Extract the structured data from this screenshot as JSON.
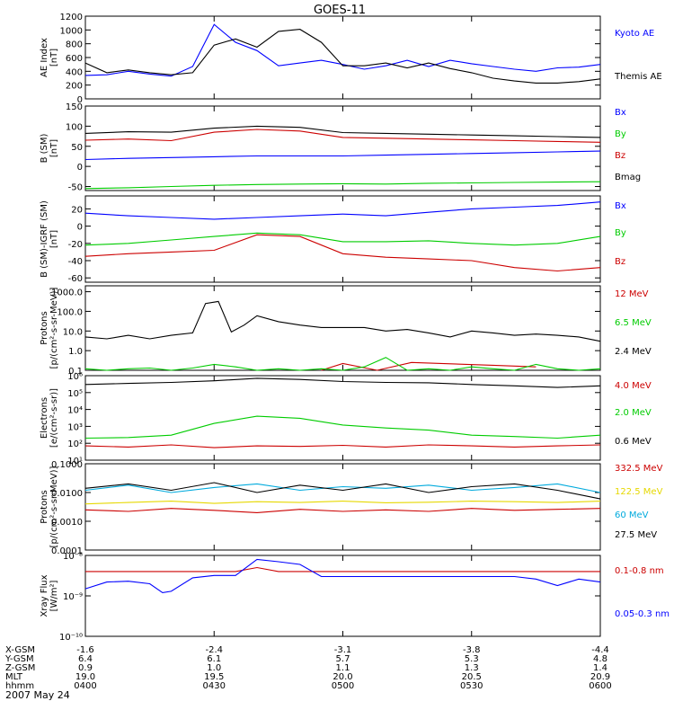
{
  "title": "GOES-11",
  "chart_data": [
    {
      "type": "line",
      "ylabel": [
        "AE Index",
        "[nT]"
      ],
      "yscale": "linear",
      "ylim": [
        0,
        1200
      ],
      "yticks": [
        0,
        200,
        400,
        600,
        800,
        1000,
        1200
      ],
      "ytick_labels": [
        "0",
        "200",
        "400",
        "600",
        "800",
        "1000",
        "1200"
      ],
      "series": [
        {
          "name": "Kyoto AE",
          "color": "#0000ff",
          "x": [
            0,
            5,
            10,
            15,
            20,
            25,
            30,
            35,
            40,
            45,
            50,
            55,
            60,
            65,
            70,
            75,
            80,
            85,
            90,
            95,
            100,
            105,
            110,
            115,
            120
          ],
          "values": [
            340,
            350,
            400,
            360,
            330,
            470,
            1080,
            820,
            700,
            480,
            520,
            560,
            500,
            430,
            480,
            560,
            470,
            560,
            510,
            470,
            430,
            400,
            450,
            460,
            500
          ]
        },
        {
          "name": "Themis AE",
          "color": "#000000",
          "x": [
            0,
            5,
            10,
            15,
            20,
            25,
            30,
            35,
            40,
            45,
            50,
            55,
            60,
            65,
            70,
            75,
            80,
            85,
            90,
            95,
            100,
            105,
            110,
            115,
            120
          ],
          "values": [
            520,
            380,
            420,
            380,
            350,
            380,
            780,
            870,
            750,
            980,
            1010,
            820,
            480,
            480,
            520,
            450,
            520,
            440,
            380,
            300,
            260,
            230,
            230,
            250,
            290
          ]
        }
      ]
    },
    {
      "type": "line",
      "ylabel": [
        "B (SM)",
        "[nT]"
      ],
      "yscale": "linear",
      "ylim": [
        -60,
        150
      ],
      "yticks": [
        -50,
        0,
        50,
        100,
        150
      ],
      "ytick_labels": [
        "-50",
        "0",
        "50",
        "100",
        "150"
      ],
      "series": [
        {
          "name": "Bx",
          "color": "#0000ff",
          "x": [
            0,
            10,
            20,
            30,
            40,
            50,
            60,
            70,
            80,
            90,
            100,
            110,
            120
          ],
          "values": [
            17,
            20,
            22,
            24,
            26,
            26,
            26,
            28,
            30,
            32,
            34,
            36,
            38
          ]
        },
        {
          "name": "By",
          "color": "#00cc00",
          "x": [
            0,
            10,
            20,
            30,
            40,
            50,
            60,
            70,
            80,
            90,
            100,
            110,
            120
          ],
          "values": [
            -55,
            -53,
            -50,
            -47,
            -45,
            -44,
            -43,
            -44,
            -42,
            -41,
            -40,
            -39,
            -38
          ]
        },
        {
          "name": "Bz",
          "color": "#cc0000",
          "x": [
            0,
            10,
            20,
            30,
            40,
            50,
            60,
            70,
            80,
            90,
            100,
            110,
            120
          ],
          "values": [
            65,
            68,
            64,
            85,
            92,
            88,
            72,
            70,
            68,
            66,
            64,
            62,
            60
          ]
        },
        {
          "name": "Bmag",
          "color": "#000000",
          "x": [
            0,
            10,
            20,
            30,
            40,
            50,
            60,
            70,
            80,
            90,
            100,
            110,
            120
          ],
          "values": [
            82,
            86,
            85,
            95,
            100,
            97,
            84,
            82,
            80,
            78,
            76,
            74,
            72
          ]
        }
      ]
    },
    {
      "type": "line",
      "ylabel": [
        "B (SM)-IGRF (SM)",
        "[nT]"
      ],
      "yscale": "linear",
      "ylim": [
        -65,
        35
      ],
      "yticks": [
        -60,
        -40,
        -20,
        0,
        20
      ],
      "ytick_labels": [
        "-60",
        "-40",
        "-20",
        "0",
        "20"
      ],
      "series": [
        {
          "name": "Bx",
          "color": "#0000ff",
          "x": [
            0,
            10,
            20,
            30,
            40,
            50,
            60,
            70,
            80,
            90,
            100,
            110,
            120
          ],
          "values": [
            15,
            12,
            10,
            8,
            10,
            12,
            14,
            12,
            16,
            20,
            22,
            24,
            28
          ]
        },
        {
          "name": "By",
          "color": "#00cc00",
          "x": [
            0,
            10,
            20,
            30,
            40,
            50,
            60,
            70,
            80,
            90,
            100,
            110,
            120
          ],
          "values": [
            -22,
            -20,
            -16,
            -12,
            -8,
            -10,
            -18,
            -18,
            -17,
            -20,
            -22,
            -20,
            -12
          ]
        },
        {
          "name": "Bz",
          "color": "#cc0000",
          "x": [
            0,
            10,
            20,
            30,
            40,
            50,
            60,
            70,
            80,
            90,
            100,
            110,
            120
          ],
          "values": [
            -35,
            -32,
            -30,
            -28,
            -10,
            -12,
            -32,
            -36,
            -38,
            -40,
            -48,
            -52,
            -48
          ]
        }
      ]
    },
    {
      "type": "line",
      "ylabel": [
        "Protons",
        "[p/(cm²-s-sr-MeV)]"
      ],
      "yscale": "log",
      "ylim": [
        0.1,
        2000
      ],
      "yticks": [
        0.1,
        1,
        10,
        100,
        1000
      ],
      "ytick_labels": [
        "0.1",
        "1.0",
        "10.0",
        "100.0",
        "1000.0"
      ],
      "series": [
        {
          "name": "12 MeV",
          "color": "#cc0000",
          "x": [
            55,
            60,
            68,
            76,
            95,
            105
          ],
          "values": [
            0.1,
            0.22,
            0.1,
            0.25,
            0.18,
            0.15
          ]
        },
        {
          "name": "6.5 MeV",
          "color": "#00cc00",
          "x": [
            0,
            5,
            10,
            15,
            20,
            25,
            30,
            35,
            40,
            45,
            50,
            55,
            60,
            65,
            70,
            75,
            80,
            85,
            90,
            95,
            100,
            105,
            110,
            115,
            120
          ],
          "values": [
            0.12,
            0.1,
            0.12,
            0.13,
            0.1,
            0.13,
            0.2,
            0.15,
            0.1,
            0.12,
            0.1,
            0.12,
            0.1,
            0.15,
            0.45,
            0.1,
            0.12,
            0.1,
            0.15,
            0.12,
            0.1,
            0.2,
            0.12,
            0.1,
            0.12
          ]
        },
        {
          "name": "2.4 MeV",
          "color": "#000000",
          "x": [
            0,
            5,
            10,
            15,
            20,
            25,
            28,
            31,
            34,
            37,
            40,
            45,
            50,
            55,
            60,
            65,
            70,
            75,
            80,
            85,
            90,
            95,
            100,
            105,
            110,
            115,
            120
          ],
          "values": [
            5,
            4,
            6,
            4,
            6,
            8,
            250,
            320,
            9,
            20,
            60,
            30,
            20,
            15,
            15,
            15,
            10,
            12,
            8,
            5,
            10,
            8,
            6,
            7,
            6,
            5,
            3
          ]
        }
      ]
    },
    {
      "type": "line",
      "ylabel": [
        "Electrons",
        "[e/(cm²-s-sr)]"
      ],
      "yscale": "log",
      "ylim": [
        10,
        1000000
      ],
      "yticks": [
        10,
        100,
        1000,
        10000,
        100000,
        1000000
      ],
      "ytick_labels": [
        "10¹",
        "10²",
        "10³",
        "10⁴",
        "10⁵",
        "10⁶"
      ],
      "series": [
        {
          "name": "4.0 MeV",
          "color": "#cc0000",
          "x": [
            0,
            10,
            20,
            30,
            40,
            50,
            60,
            70,
            80,
            90,
            100,
            110,
            120
          ],
          "values": [
            70,
            60,
            80,
            55,
            70,
            65,
            75,
            60,
            80,
            70,
            60,
            70,
            80
          ]
        },
        {
          "name": "2.0 MeV",
          "color": "#00cc00",
          "x": [
            0,
            10,
            20,
            30,
            40,
            50,
            60,
            70,
            80,
            90,
            100,
            110,
            120
          ],
          "values": [
            200,
            220,
            300,
            1500,
            4000,
            3000,
            1200,
            800,
            600,
            300,
            250,
            200,
            300
          ]
        },
        {
          "name": "0.6 MeV",
          "color": "#000000",
          "x": [
            0,
            10,
            20,
            30,
            40,
            50,
            60,
            70,
            80,
            90,
            100,
            110,
            120
          ],
          "values": [
            300000,
            350000,
            400000,
            500000,
            700000,
            600000,
            450000,
            400000,
            380000,
            300000,
            250000,
            200000,
            250000
          ]
        }
      ]
    },
    {
      "type": "line",
      "ylabel": [
        "Protons",
        "[p/(cm²-s-sr-MeV)]"
      ],
      "yscale": "log",
      "ylim": [
        0.0001,
        0.1
      ],
      "yticks": [
        0.0001,
        0.001,
        0.01,
        0.1
      ],
      "ytick_labels": [
        "0.0001",
        "0.0010",
        "0.0100",
        "0.1000"
      ],
      "series": [
        {
          "name": "332.5 MeV",
          "color": "#cc0000",
          "x": [
            0,
            10,
            20,
            30,
            40,
            50,
            60,
            70,
            80,
            90,
            100,
            110,
            120
          ],
          "values": [
            0.0025,
            0.0022,
            0.0028,
            0.0024,
            0.002,
            0.0026,
            0.0022,
            0.0025,
            0.0022,
            0.0028,
            0.0024,
            0.0026,
            0.0028
          ]
        },
        {
          "name": "122.5 MeV",
          "color": "#e6d800",
          "x": [
            0,
            10,
            20,
            30,
            40,
            50,
            60,
            70,
            80,
            90,
            100,
            110,
            120
          ],
          "values": [
            0.004,
            0.0045,
            0.005,
            0.0042,
            0.0048,
            0.0045,
            0.005,
            0.0044,
            0.0046,
            0.005,
            0.0048,
            0.0045,
            0.005
          ]
        },
        {
          "name": "60 MeV",
          "color": "#00aadd",
          "x": [
            0,
            10,
            20,
            30,
            40,
            50,
            60,
            70,
            80,
            90,
            100,
            110,
            120
          ],
          "values": [
            0.012,
            0.018,
            0.01,
            0.015,
            0.02,
            0.012,
            0.016,
            0.014,
            0.018,
            0.012,
            0.015,
            0.02,
            0.01
          ]
        },
        {
          "name": "27.5 MeV",
          "color": "#000000",
          "x": [
            0,
            10,
            20,
            30,
            40,
            50,
            60,
            70,
            80,
            90,
            100,
            110,
            120
          ],
          "values": [
            0.014,
            0.02,
            0.012,
            0.022,
            0.01,
            0.018,
            0.012,
            0.02,
            0.01,
            0.016,
            0.02,
            0.012,
            0.006
          ]
        }
      ]
    },
    {
      "type": "line",
      "ylabel": [
        "Xray Flux",
        "[W/m²]"
      ],
      "yscale": "log",
      "ylim": [
        1e-10,
        1e-08
      ],
      "yticks": [
        1e-10,
        1e-09,
        1e-08
      ],
      "ytick_labels": [
        "10⁻¹⁰",
        "10⁻⁹",
        "10⁻⁸"
      ],
      "series": [
        {
          "name": "0.1-0.8 nm",
          "color": "#cc0000",
          "x": [
            0,
            10,
            20,
            25,
            30,
            35,
            40,
            45,
            50,
            55,
            60,
            80,
            100,
            120
          ],
          "values": [
            4e-09,
            4e-09,
            4e-09,
            4e-09,
            4e-09,
            4e-09,
            5e-09,
            4e-09,
            4e-09,
            4e-09,
            4e-09,
            4e-09,
            4e-09,
            4e-09
          ]
        },
        {
          "name": "0.05-0.3 nm",
          "color": "#0000ff",
          "x": [
            0,
            5,
            10,
            15,
            18,
            20,
            25,
            30,
            35,
            40,
            45,
            50,
            55,
            60,
            70,
            80,
            90,
            100,
            105,
            110,
            115,
            120
          ],
          "values": [
            1.5e-09,
            2.2e-09,
            2.3e-09,
            2e-09,
            1.2e-09,
            1.3e-09,
            2.8e-09,
            3.2e-09,
            3.2e-09,
            8e-09,
            7e-09,
            6e-09,
            3e-09,
            3e-09,
            3e-09,
            3e-09,
            3e-09,
            3e-09,
            2.6e-09,
            1.8e-09,
            2.6e-09,
            2.2e-09
          ]
        }
      ]
    }
  ],
  "xaxis": {
    "rows": [
      {
        "label": "X-GSM",
        "values": [
          "-1.6",
          "-2.4",
          "-3.1",
          "-3.8",
          "-4.4"
        ]
      },
      {
        "label": "Y-GSM",
        "values": [
          "6.4",
          "6.1",
          "5.7",
          "5.3",
          "4.8"
        ]
      },
      {
        "label": "Z-GSM",
        "values": [
          "0.9",
          "1.0",
          "1.1",
          "1.3",
          "1.4"
        ]
      },
      {
        "label": "MLT",
        "values": [
          "19.0",
          "19.5",
          "20.0",
          "20.5",
          "20.9"
        ]
      },
      {
        "label": "hhmm",
        "values": [
          "0400",
          "0430",
          "0500",
          "0530",
          "0600"
        ]
      }
    ],
    "tick_x": [
      0,
      30,
      60,
      90,
      120
    ],
    "date": "2007 May 24"
  }
}
